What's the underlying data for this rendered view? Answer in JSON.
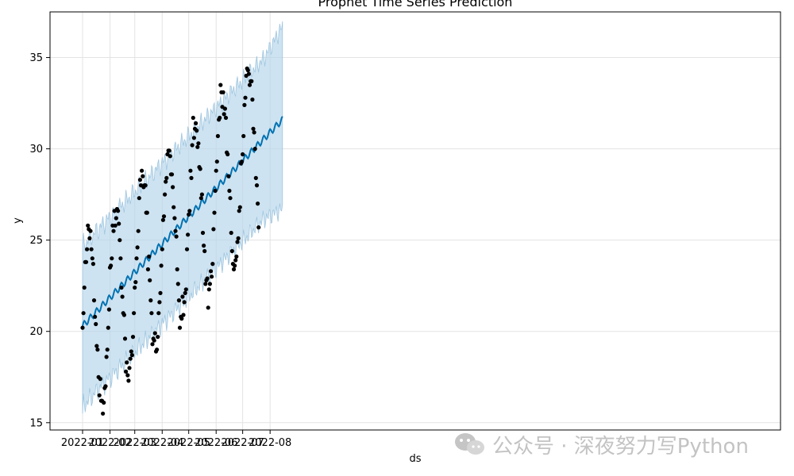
{
  "chart_data": {
    "type": "line",
    "title": "Prophet Time Series Prediction",
    "xlabel": "ds",
    "ylabel": "y",
    "ylim": [
      14.6,
      37.5
    ],
    "yticks": [
      15,
      20,
      25,
      30,
      35
    ],
    "xticks": [
      "2022-01",
      "2022-02",
      "2022-03",
      "2022-04",
      "2022-05",
      "2022-06",
      "2022-07",
      "2022-08"
    ],
    "grid": true,
    "colors": {
      "forecast": "#0072B2",
      "band": "#b3d4ea",
      "band_edge": "#9fc6e0",
      "observed": "#000000"
    },
    "forecast": {
      "start": 20.3,
      "end": 31.6
    },
    "series": [
      {
        "values": [
          20.2,
          21.0,
          22.4,
          23.8,
          23.8,
          24.5,
          25.8,
          25.6,
          25.1,
          25.5,
          24.5,
          24.0,
          23.7,
          21.7,
          20.8,
          20.4,
          19.2,
          19.0,
          17.5,
          16.5,
          17.4,
          16.2,
          16.2,
          15.5,
          16.1,
          16.9,
          17.0,
          18.6,
          19.0,
          20.2,
          21.2,
          23.5,
          23.6,
          24.0,
          25.8,
          25.5,
          26.6,
          25.8,
          26.2,
          26.7,
          26.6,
          25.9,
          25.0,
          24.0,
          22.4,
          21.9,
          21.0,
          20.9,
          19.6,
          17.8,
          18.3,
          17.6,
          17.3,
          18.0,
          18.5,
          18.9,
          18.7,
          19.7,
          21.0,
          22.4,
          22.7,
          24.0,
          24.6,
          25.5,
          27.3,
          28.3,
          28.0,
          28.8,
          28.5,
          27.9,
          28.0,
          28.0,
          26.5,
          26.5,
          23.4,
          24.1,
          22.8,
          21.7,
          21.0,
          19.3,
          19.6,
          19.5,
          19.9,
          18.9,
          19.0,
          19.7,
          21.0,
          21.6,
          22.1,
          23.6,
          24.5,
          26.1,
          26.3,
          27.5,
          28.2,
          28.4,
          29.7,
          29.9,
          29.9,
          29.6,
          28.6,
          28.6,
          27.9,
          26.8,
          26.2,
          25.5,
          25.2,
          23.4,
          22.6,
          21.7,
          20.2,
          20.8,
          20.7,
          21.9,
          20.9,
          21.6,
          22.1,
          22.3,
          24.5,
          25.3,
          26.4,
          26.6,
          28.8,
          28.4,
          30.2,
          31.7,
          30.6,
          31.1,
          31.4,
          31.0,
          30.1,
          30.3,
          29.0,
          28.9,
          27.3,
          27.5,
          25.4,
          24.7,
          24.4,
          22.6,
          22.8,
          22.9,
          21.3,
          22.3,
          22.6,
          23.3,
          23.0,
          23.7,
          25.6,
          26.5,
          27.7,
          28.8,
          29.3,
          30.7,
          31.6,
          31.7,
          33.5,
          33.1,
          32.3,
          33.1,
          31.9,
          32.2,
          31.7,
          29.8,
          29.7,
          28.5,
          27.7,
          27.3,
          25.4,
          24.4,
          23.7,
          23.4,
          23.6,
          23.9,
          24.1,
          24.9,
          25.1,
          26.6,
          26.8,
          29.2,
          29.3,
          29.7,
          30.7,
          32.4,
          32.8,
          34.0,
          34.4,
          34.3,
          34.1,
          33.5,
          33.7,
          33.7,
          32.7,
          31.1,
          30.9,
          30.0,
          28.4,
          28.0,
          27.0,
          25.7
        ]
      }
    ]
  },
  "watermark": {
    "text": "公众号 · 深夜努力写Python"
  }
}
